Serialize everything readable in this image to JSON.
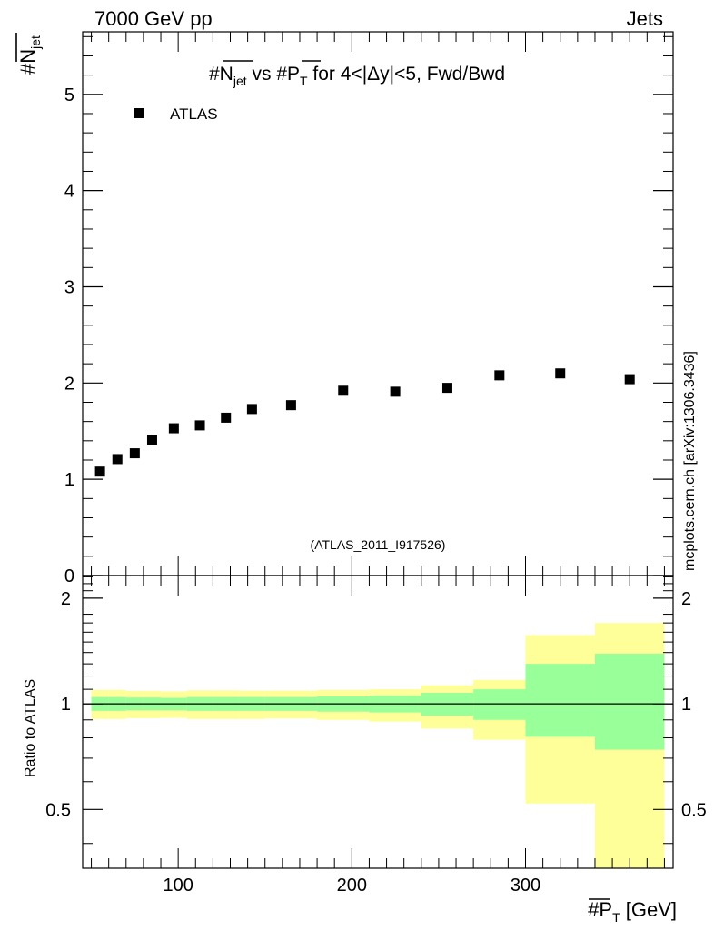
{
  "header": {
    "left": "7000 GeV pp",
    "right": "Jets"
  },
  "side_label": "mcplots.cern.ch [arXiv:1306.3436]",
  "watermark": "(ATLAS_2011_I917526)",
  "chart_data": [
    {
      "type": "scatter",
      "panel": "main",
      "title": "#N_jet vs #P_T for 4<|Δy|<5, Fwd/Bwd",
      "title_parts": {
        "a": "#N",
        "a_sub": "jet",
        "b": " vs #P",
        "b_sub": "T",
        "c": " for 4<|Δy|<5, Fwd/Bwd"
      },
      "ylabel": "#N_jet",
      "ylabel_parts": {
        "main": "#N",
        "sub": "jet"
      },
      "xlim": [
        45,
        385
      ],
      "ylim": [
        0,
        5.65
      ],
      "yticks": [
        0,
        1,
        2,
        3,
        4,
        5
      ],
      "ytick_labels": [
        "0",
        "1",
        "2",
        "3",
        "4",
        "5"
      ],
      "legend": {
        "placement": "top-left",
        "label": "ATLAS"
      },
      "series": [
        {
          "name": "ATLAS",
          "x": [
            55,
            65,
            75,
            85,
            97.5,
            112.5,
            127.5,
            142.5,
            165,
            195,
            225,
            255,
            285,
            320,
            360
          ],
          "y": [
            1.08,
            1.21,
            1.27,
            1.41,
            1.53,
            1.56,
            1.64,
            1.73,
            1.77,
            1.92,
            1.91,
            1.95,
            2.08,
            2.1,
            2.04
          ]
        }
      ]
    },
    {
      "type": "area",
      "panel": "ratio",
      "ylabel": "Ratio to ATLAS",
      "xlabel": "#P_T [GeV]",
      "xlabel_parts": {
        "main": "#P",
        "sub": "T",
        "rest": " [GeV]"
      },
      "xlim": [
        45,
        385
      ],
      "ylim": [
        0.34,
        2.32
      ],
      "xticks": [
        100,
        200,
        300
      ],
      "xtick_labels": [
        "100",
        "200",
        "300"
      ],
      "yticks": [
        0.5,
        1,
        2
      ],
      "ytick_labels": [
        "0.5",
        "1",
        "2"
      ],
      "reference_line": 1,
      "bins": [
        {
          "lo": 50,
          "hi": 60,
          "stat_lo": 0.955,
          "stat_hi": 1.045,
          "tot_lo": 0.905,
          "tot_hi": 1.095
        },
        {
          "lo": 60,
          "hi": 70,
          "stat_lo": 0.955,
          "stat_hi": 1.045,
          "tot_lo": 0.905,
          "tot_hi": 1.095
        },
        {
          "lo": 70,
          "hi": 80,
          "stat_lo": 0.958,
          "stat_hi": 1.042,
          "tot_lo": 0.91,
          "tot_hi": 1.088
        },
        {
          "lo": 80,
          "hi": 90,
          "stat_lo": 0.958,
          "stat_hi": 1.042,
          "tot_lo": 0.91,
          "tot_hi": 1.088
        },
        {
          "lo": 90,
          "hi": 105,
          "stat_lo": 0.958,
          "stat_hi": 1.04,
          "tot_lo": 0.912,
          "tot_hi": 1.085
        },
        {
          "lo": 105,
          "hi": 120,
          "stat_lo": 0.955,
          "stat_hi": 1.045,
          "tot_lo": 0.905,
          "tot_hi": 1.092
        },
        {
          "lo": 120,
          "hi": 135,
          "stat_lo": 0.955,
          "stat_hi": 1.045,
          "tot_lo": 0.905,
          "tot_hi": 1.092
        },
        {
          "lo": 135,
          "hi": 150,
          "stat_lo": 0.955,
          "stat_hi": 1.045,
          "tot_lo": 0.905,
          "tot_hi": 1.09
        },
        {
          "lo": 150,
          "hi": 180,
          "stat_lo": 0.955,
          "stat_hi": 1.045,
          "tot_lo": 0.908,
          "tot_hi": 1.09
        },
        {
          "lo": 180,
          "hi": 210,
          "stat_lo": 0.95,
          "stat_hi": 1.05,
          "tot_lo": 0.9,
          "tot_hi": 1.095
        },
        {
          "lo": 210,
          "hi": 240,
          "stat_lo": 0.945,
          "stat_hi": 1.055,
          "tot_lo": 0.89,
          "tot_hi": 1.1
        },
        {
          "lo": 240,
          "hi": 270,
          "stat_lo": 0.925,
          "stat_hi": 1.075,
          "tot_lo": 0.85,
          "tot_hi": 1.13
        },
        {
          "lo": 270,
          "hi": 300,
          "stat_lo": 0.9,
          "stat_hi": 1.1,
          "tot_lo": 0.79,
          "tot_hi": 1.17
        },
        {
          "lo": 300,
          "hi": 340,
          "stat_lo": 0.805,
          "stat_hi": 1.3,
          "tot_lo": 0.52,
          "tot_hi": 1.57
        },
        {
          "lo": 340,
          "hi": 380,
          "stat_lo": 0.74,
          "stat_hi": 1.39,
          "tot_lo": 0.34,
          "tot_hi": 1.7
        }
      ]
    }
  ],
  "colors": {
    "stat_band": "#99ff99",
    "total_band": "#ffff99",
    "marker": "#000000",
    "axis": "#000000",
    "watermark": "#999999",
    "side_label": "#888888"
  }
}
